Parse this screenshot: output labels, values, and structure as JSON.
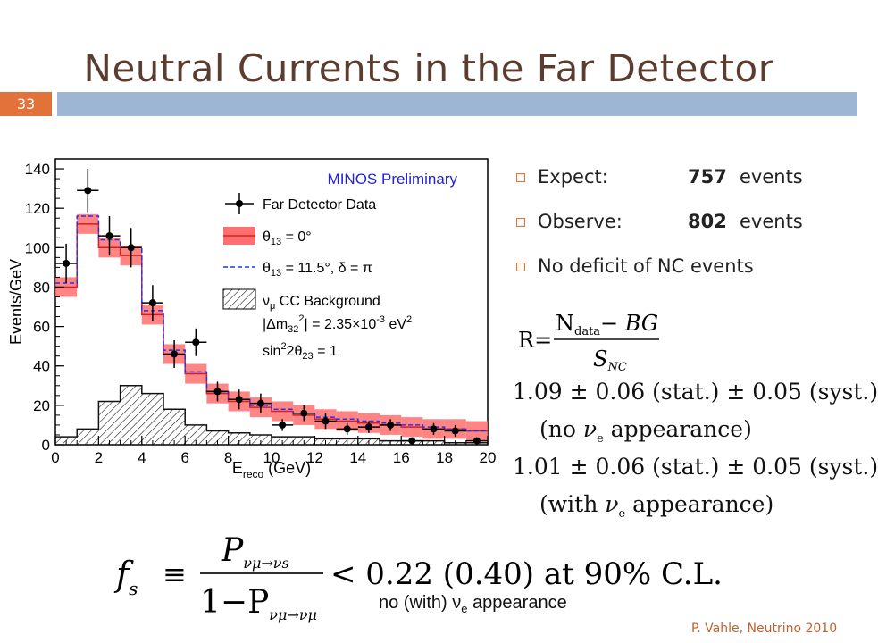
{
  "slide": {
    "title": "Neutral Currents in the Far Detector",
    "number": "33",
    "credit": "P. Vahle, Neutrino 2010",
    "accent": "#e2723a",
    "bar_color": "#9cb6d3",
    "title_color": "#5a3d2e"
  },
  "bullets": [
    {
      "label": "Expect:",
      "value": "757",
      "unit": "events"
    },
    {
      "label": "Observe:",
      "value": "802",
      "unit": "events"
    },
    {
      "label": "No deficit of NC events",
      "value": "",
      "unit": ""
    }
  ],
  "r_formula": {
    "lhs": "R=",
    "num_main": "N",
    "num_sub": "data",
    "num_rest": "− BG",
    "den_main": "S",
    "den_sub": "NC"
  },
  "results": [
    {
      "line1": "1.09 ± 0.06 (stat.) ± 0.05 (syst.)",
      "line2_pre": "(no ",
      "nu": "ν",
      "nu_sub": "e",
      "line2_post": " appearance)"
    },
    {
      "line1": "1.01 ± 0.06 (stat.) ± 0.05 (syst.)",
      "line2_pre": "(with ",
      "nu": "ν",
      "nu_sub": "e",
      "line2_post": " appearance)"
    }
  ],
  "fs_formula": {
    "lhs": "f",
    "lhs_sub": "s",
    "equiv": "≡",
    "num": "P",
    "num_sub": "νμ→νs",
    "den_pre": "1−P",
    "den_sub": "νμ→νμ",
    "rhs": "< 0.22 (0.40) at 90% C.L."
  },
  "caption": {
    "pre": "no (with) ",
    "nu": "ν",
    "nu_sub": "e",
    "post": " appearance"
  },
  "chart_data": {
    "type": "histogram",
    "title": "MINOS Preliminary",
    "title_color": "#2222dd",
    "xlabel": "E",
    "xlabel_sub": "reco",
    "xlabel_unit": " (GeV)",
    "ylabel": "Events/GeV",
    "xlim": [
      0,
      20
    ],
    "ylim": [
      0,
      145
    ],
    "xticks": [
      0,
      2,
      4,
      6,
      8,
      10,
      12,
      14,
      16,
      18,
      20
    ],
    "yticks": [
      0,
      20,
      40,
      60,
      80,
      100,
      120,
      140
    ],
    "bin_edges": [
      0,
      1,
      2,
      3,
      4,
      5,
      6,
      7,
      8,
      9,
      10,
      11,
      12,
      13,
      14,
      15,
      16,
      17,
      18,
      19,
      20
    ],
    "theta0_center": [
      80,
      112,
      100,
      96,
      66,
      46,
      36,
      26,
      22,
      19,
      17,
      15,
      13,
      12,
      11,
      10,
      9,
      8,
      8,
      7
    ],
    "theta0_band": 5,
    "theta0_color": "#ff6f6f",
    "theta115": [
      82,
      116,
      104,
      100,
      68,
      48,
      37,
      27,
      23,
      20,
      18,
      16,
      14,
      13,
      12,
      11,
      10,
      9,
      8,
      7
    ],
    "theta115_color": "#2233ee",
    "background": [
      4,
      8,
      22,
      30,
      26,
      18,
      10,
      7,
      6,
      5,
      4,
      4,
      3,
      3,
      3,
      2,
      2,
      2,
      1,
      1
    ],
    "data_points": {
      "x": [
        0.5,
        1.5,
        2.5,
        3.5,
        4.5,
        5.5,
        6.5,
        7.5,
        8.5,
        9.5,
        10.5,
        11.5,
        12.5,
        13.5,
        14.5,
        15.5,
        16.5,
        17.5,
        18.5,
        19.5
      ],
      "y": [
        92,
        129,
        106,
        100,
        72,
        46,
        52,
        27,
        23,
        21,
        10,
        16,
        12,
        8,
        9,
        10,
        2,
        8,
        7,
        2
      ],
      "err": [
        10,
        11,
        10,
        10,
        9,
        7,
        7,
        5,
        5,
        5,
        3,
        4,
        4,
        3,
        3,
        3,
        1.5,
        3,
        3,
        1.5
      ]
    },
    "legend": [
      {
        "kind": "data",
        "label": "Far Detector Data"
      },
      {
        "kind": "band",
        "label_main": "θ",
        "label_sub": "13",
        "label_rest": " = 0°"
      },
      {
        "kind": "dash",
        "label_main": "θ",
        "label_sub": "13",
        "label_rest": " = 11.5°,  δ = π"
      },
      {
        "kind": "hatch",
        "label_main": "ν",
        "label_sub": "μ",
        "label_rest": " CC Background"
      }
    ],
    "annotations": [
      {
        "main": "|Δm",
        "sub": "32",
        "sup": "2",
        "rest": "| = 2.35×10",
        "sup2": "-3",
        "rest2": " eV",
        "sup3": "2"
      },
      {
        "main": "sin",
        "sup": "2",
        "rest": "2θ",
        "sub": "23",
        "rest2": " = 1"
      }
    ],
    "legend_position": "top-right"
  }
}
